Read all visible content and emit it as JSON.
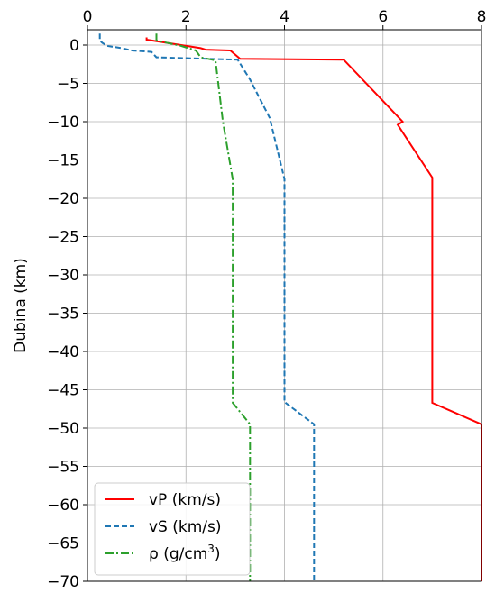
{
  "chart_data": {
    "type": "line",
    "xlabel": "",
    "ylabel": "Dubina (km)",
    "xlim": [
      0,
      8
    ],
    "ylim": [
      -70,
      2
    ],
    "xticks": [
      "0",
      "2",
      "4",
      "6",
      "8"
    ],
    "yticks": [
      "0",
      "−5",
      "−10",
      "−15",
      "−20",
      "−25",
      "−30",
      "−35",
      "−40",
      "−45",
      "−50",
      "−55",
      "−60",
      "−65",
      "−70"
    ],
    "grid": true,
    "legend_position": "lower-left",
    "series": [
      {
        "name": "vP (km/s)",
        "legend_base": "vP (km/s)",
        "legend_sup": "",
        "legend_after": "",
        "color": "#ff0000",
        "style": "solid",
        "points": [
          [
            1.2,
            1
          ],
          [
            1.2,
            0.7
          ],
          [
            2.3,
            -0.4
          ],
          [
            2.4,
            -0.6
          ],
          [
            2.9,
            -0.7
          ],
          [
            3.1,
            -1.8
          ],
          [
            5.2,
            -1.9
          ],
          [
            6.4,
            -10
          ],
          [
            6.3,
            -10.4
          ],
          [
            7.0,
            -17.3
          ],
          [
            7.0,
            -46.7
          ],
          [
            8.0,
            -49.5
          ],
          [
            8.0,
            -70
          ]
        ]
      },
      {
        "name": "vS (km/s)",
        "legend_base": "vS (km/s)",
        "legend_sup": "",
        "legend_after": "",
        "color": "#1f77b4",
        "style": "dashed",
        "points": [
          [
            0.25,
            1.5
          ],
          [
            0.25,
            0.6
          ],
          [
            0.3,
            0.3
          ],
          [
            0.4,
            -0.1
          ],
          [
            0.7,
            -0.4
          ],
          [
            0.9,
            -0.7
          ],
          [
            1.3,
            -0.9
          ],
          [
            1.4,
            -1.6
          ],
          [
            3.05,
            -1.9
          ],
          [
            3.3,
            -4.5
          ],
          [
            3.7,
            -9.5
          ],
          [
            4.0,
            -17.5
          ],
          [
            4.0,
            -46.6
          ],
          [
            4.6,
            -49.5
          ],
          [
            4.6,
            -70
          ]
        ]
      },
      {
        "name": "ρ (g/cm3)",
        "legend_base": "ρ (g/cm",
        "legend_sup": "3",
        "legend_after": ")",
        "color": "#2ca02c",
        "style": "dashdot",
        "points": [
          [
            1.4,
            1.5
          ],
          [
            1.4,
            0.6
          ],
          [
            1.9,
            -0.1
          ],
          [
            2.2,
            -0.7
          ],
          [
            2.3,
            -1.6
          ],
          [
            2.6,
            -2.0
          ],
          [
            2.75,
            -10
          ],
          [
            2.95,
            -17.5
          ],
          [
            2.95,
            -46.7
          ],
          [
            3.3,
            -49.5
          ],
          [
            3.3,
            -70
          ]
        ]
      }
    ]
  }
}
